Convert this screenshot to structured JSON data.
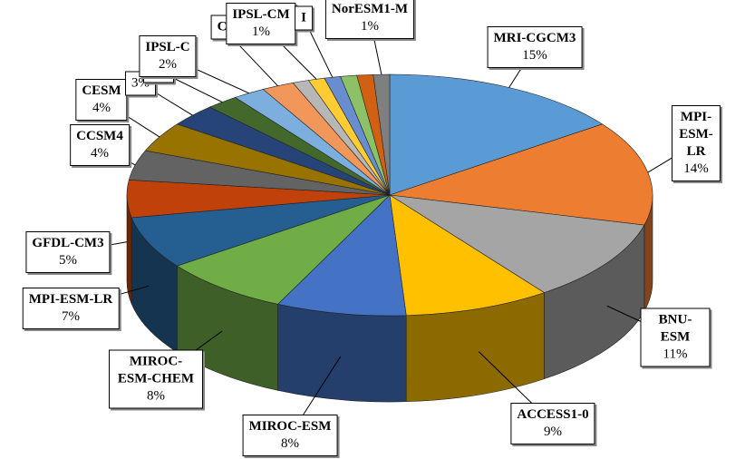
{
  "chart_data": {
    "type": "pie",
    "categories": [
      "MRI-CGCM3",
      "MPI-ESM-LR",
      "BNU-ESM",
      "ACCESS1-0",
      "MIROC-ESM",
      "MIROC-ESM-CHEM",
      "MPI-ESM-LR",
      "GFDL-CM3",
      "CCSM4",
      "CESM",
      null,
      null,
      "IPSL-C",
      "C",
      null,
      "IPSL-CM",
      "I",
      null,
      null,
      "NorESM1-M"
    ],
    "values": [
      15,
      14,
      11,
      9,
      8,
      8,
      7,
      5,
      4,
      4,
      3,
      2,
      2,
      2,
      1,
      1,
      1,
      1,
      1,
      1
    ],
    "value_labels": [
      "15%",
      "14%",
      "11%",
      "9%",
      "8%",
      "8%",
      "7%",
      "5%",
      "4%",
      "4%",
      "3%",
      "2%",
      "2%",
      null,
      null,
      "1%",
      null,
      null,
      null,
      "1%"
    ],
    "colors": [
      "#5b9bd5",
      "#ed7d31",
      "#a5a5a5",
      "#ffc000",
      "#4472c4",
      "#70ad47",
      "#255e91",
      "#c0420a",
      "#636363",
      "#997300",
      "#264478",
      "#43682b",
      "#7cafdd",
      "#f1975a",
      "#b7b7b7",
      "#ffcd33",
      "#698ed0",
      "#8cc168",
      "#d26012",
      "#7f7f7f"
    ]
  }
}
